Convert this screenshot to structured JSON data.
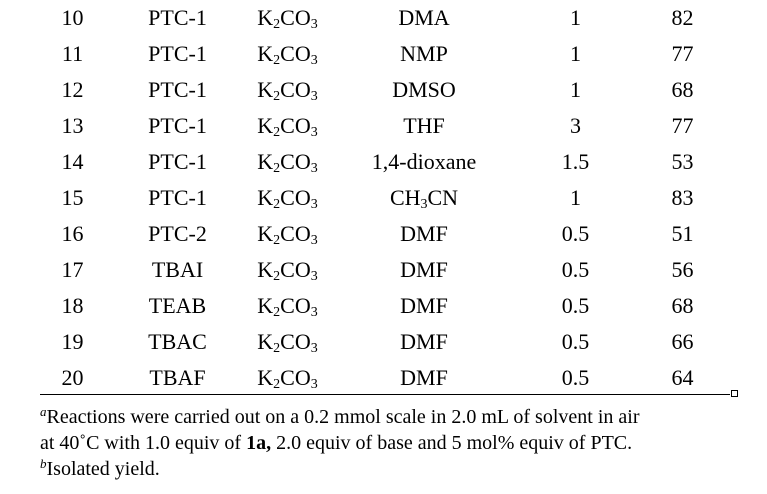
{
  "table": {
    "rows": [
      {
        "entry": "10",
        "ptc": "PTC-1",
        "base_main": "K",
        "base_sub1": "2",
        "base_mid": "CO",
        "base_sub2": "3",
        "solvent_main": "DMA",
        "solvent_sub": "",
        "solvent_tail": "",
        "time": "1",
        "yield": "82"
      },
      {
        "entry": "11",
        "ptc": "PTC-1",
        "base_main": "K",
        "base_sub1": "2",
        "base_mid": "CO",
        "base_sub2": "3",
        "solvent_main": "NMP",
        "solvent_sub": "",
        "solvent_tail": "",
        "time": "1",
        "yield": "77"
      },
      {
        "entry": "12",
        "ptc": "PTC-1",
        "base_main": "K",
        "base_sub1": "2",
        "base_mid": "CO",
        "base_sub2": "3",
        "solvent_main": "DMSO",
        "solvent_sub": "",
        "solvent_tail": "",
        "time": "1",
        "yield": "68"
      },
      {
        "entry": "13",
        "ptc": "PTC-1",
        "base_main": "K",
        "base_sub1": "2",
        "base_mid": "CO",
        "base_sub2": "3",
        "solvent_main": "THF",
        "solvent_sub": "",
        "solvent_tail": "",
        "time": "3",
        "yield": "77"
      },
      {
        "entry": "14",
        "ptc": "PTC-1",
        "base_main": "K",
        "base_sub1": "2",
        "base_mid": "CO",
        "base_sub2": "3",
        "solvent_main": "1,4-dioxane",
        "solvent_sub": "",
        "solvent_tail": "",
        "time": "1.5",
        "yield": "53"
      },
      {
        "entry": "15",
        "ptc": "PTC-1",
        "base_main": "K",
        "base_sub1": "2",
        "base_mid": "CO",
        "base_sub2": "3",
        "solvent_main": "CH",
        "solvent_sub": "3",
        "solvent_tail": "CN",
        "time": "1",
        "yield": "83"
      },
      {
        "entry": "16",
        "ptc": "PTC-2",
        "base_main": "K",
        "base_sub1": "2",
        "base_mid": "CO",
        "base_sub2": "3",
        "solvent_main": "DMF",
        "solvent_sub": "",
        "solvent_tail": "",
        "time": "0.5",
        "yield": "51"
      },
      {
        "entry": "17",
        "ptc": "TBAI",
        "base_main": "K",
        "base_sub1": "2",
        "base_mid": "CO",
        "base_sub2": "3",
        "solvent_main": "DMF",
        "solvent_sub": "",
        "solvent_tail": "",
        "time": "0.5",
        "yield": "56"
      },
      {
        "entry": "18",
        "ptc": "TEAB",
        "base_main": "K",
        "base_sub1": "2",
        "base_mid": "CO",
        "base_sub2": "3",
        "solvent_main": "DMF",
        "solvent_sub": "",
        "solvent_tail": "",
        "time": "0.5",
        "yield": "68"
      },
      {
        "entry": "19",
        "ptc": "TBAC",
        "base_main": "K",
        "base_sub1": "2",
        "base_mid": "CO",
        "base_sub2": "3",
        "solvent_main": "DMF",
        "solvent_sub": "",
        "solvent_tail": "",
        "time": "0.5",
        "yield": "66"
      },
      {
        "entry": "20",
        "ptc": "TBAF",
        "base_main": "K",
        "base_sub1": "2",
        "base_mid": "CO",
        "base_sub2": "3",
        "solvent_main": "DMF",
        "solvent_sub": "",
        "solvent_tail": "",
        "time": "0.5",
        "yield": "64"
      }
    ]
  },
  "footnotes": {
    "a_marker": "a",
    "a_line1": "Reactions were carried out on a 0.2 mmol scale in 2.0 mL of solvent in air",
    "a_line2_pre": "at 40˚C with 1.0 equiv of ",
    "a_line2_bold": "1a,",
    "a_line2_post": " 2.0 equiv of base and 5 mol% equiv of PTC.",
    "b_marker": "b",
    "b_text": "Isolated yield."
  }
}
